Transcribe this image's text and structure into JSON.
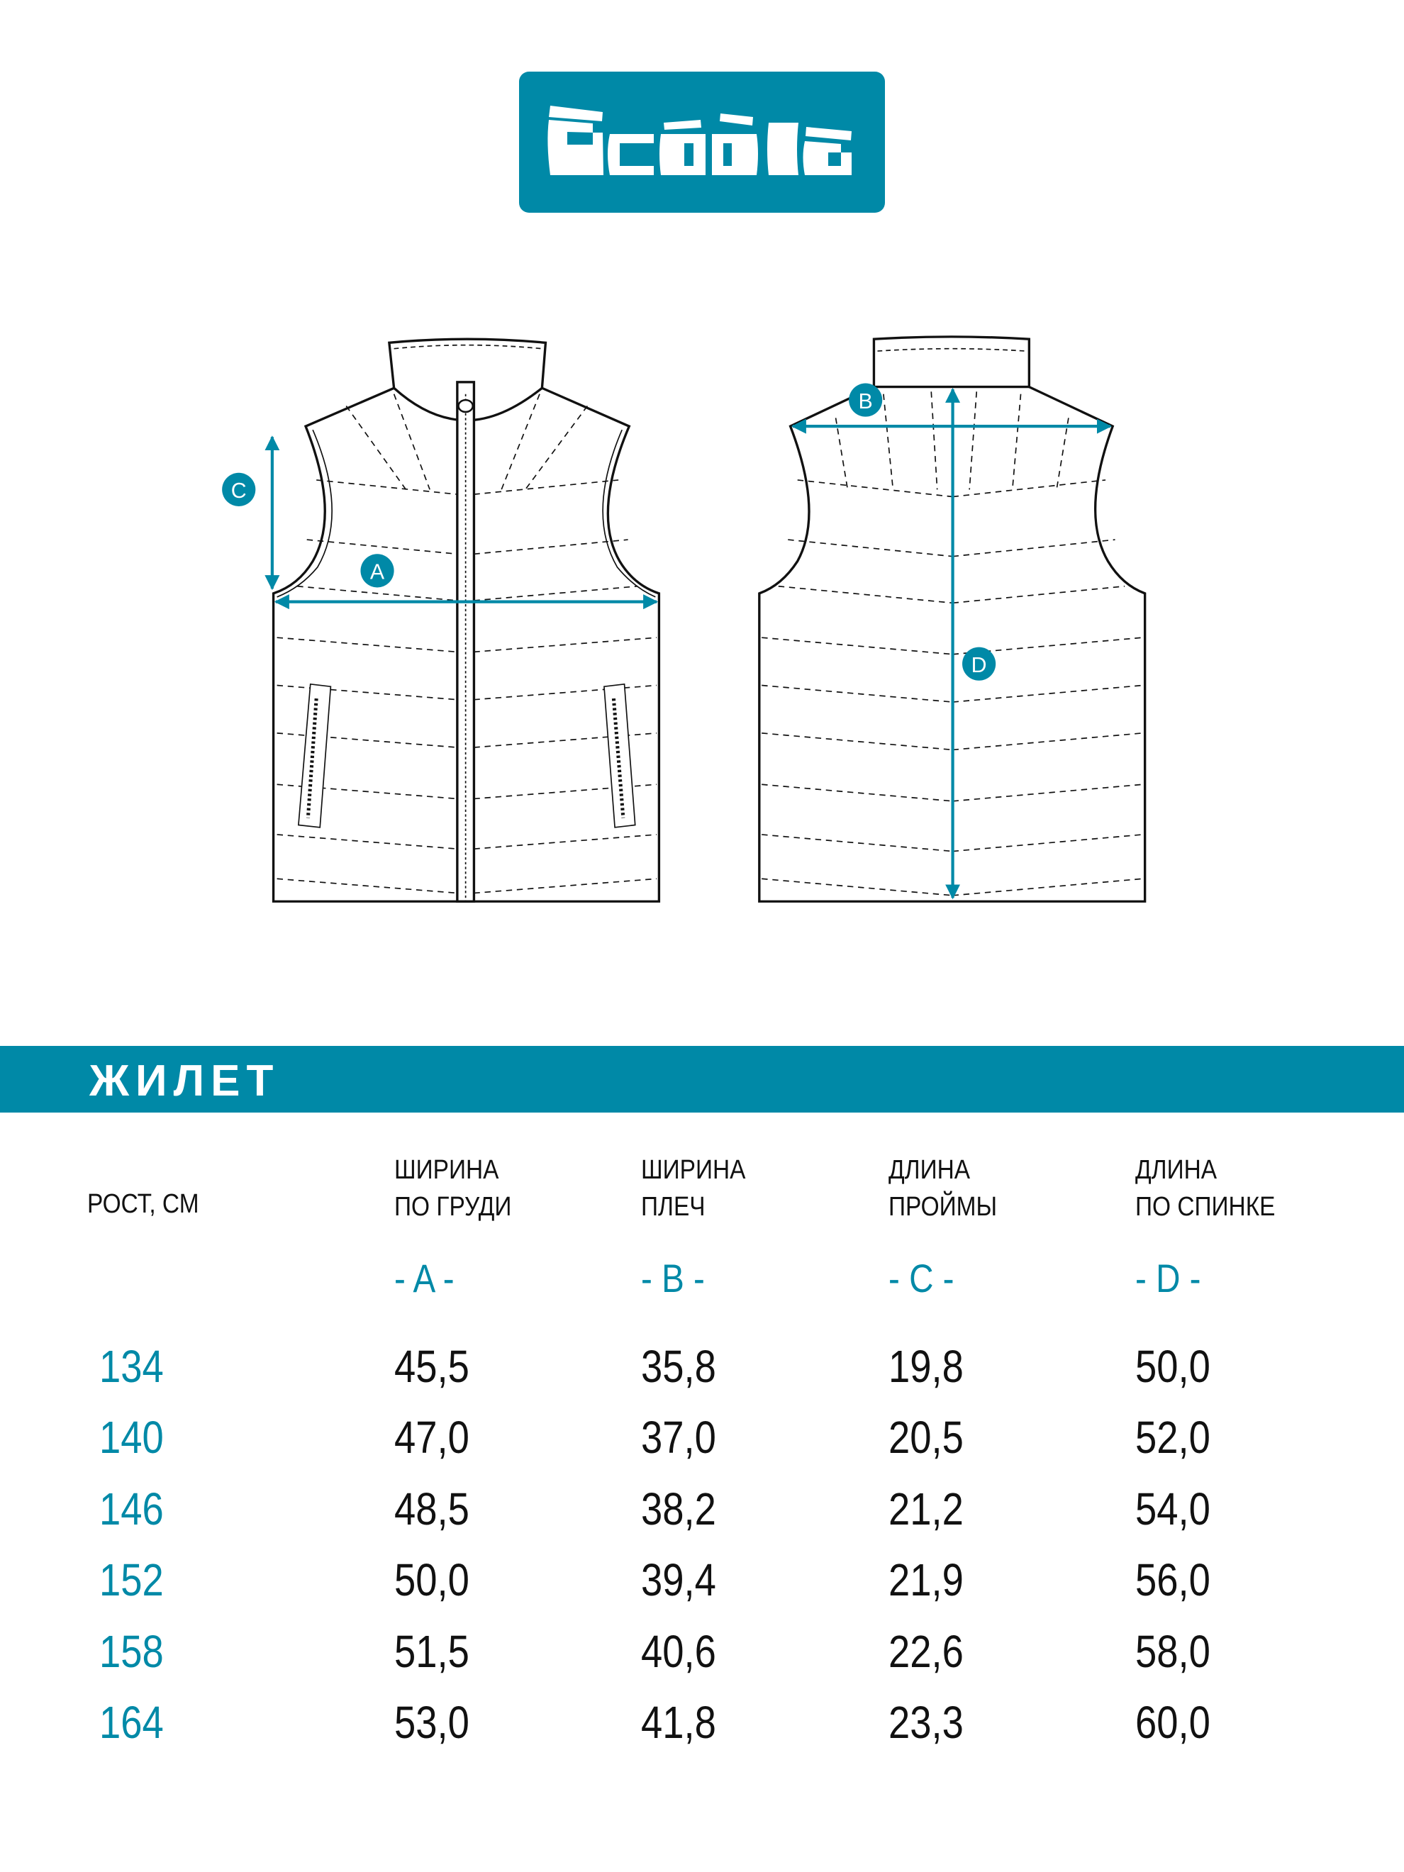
{
  "brand": {
    "name": "acoola",
    "color": "#0089a7"
  },
  "diagram": {
    "labels": {
      "a": "A",
      "b": "B",
      "c": "C",
      "d": "D"
    }
  },
  "section_title": "ЖИЛЕТ",
  "table": {
    "row_header": "РОСТ, СМ",
    "columns": [
      {
        "line1": "ШИРИНА",
        "line2": "ПО ГРУДИ",
        "letter": "- A -"
      },
      {
        "line1": "ШИРИНА",
        "line2": "ПЛЕЧ",
        "letter": "- B -"
      },
      {
        "line1": "ДЛИНА",
        "line2": "ПРОЙМЫ",
        "letter": "- C -"
      },
      {
        "line1": "ДЛИНА",
        "line2": "ПО СПИНКЕ",
        "letter": "- D -"
      }
    ],
    "rows": [
      {
        "size": "134",
        "values": [
          "45,5",
          "35,8",
          "19,8",
          "50,0"
        ]
      },
      {
        "size": "140",
        "values": [
          "47,0",
          "37,0",
          "20,5",
          "52,0"
        ]
      },
      {
        "size": "146",
        "values": [
          "48,5",
          "38,2",
          "21,2",
          "54,0"
        ]
      },
      {
        "size": "152",
        "values": [
          "50,0",
          "39,4",
          "21,9",
          "56,0"
        ]
      },
      {
        "size": "158",
        "values": [
          "51,5",
          "40,6",
          "22,6",
          "58,0"
        ]
      },
      {
        "size": "164",
        "values": [
          "53,0",
          "41,8",
          "23,3",
          "60,0"
        ]
      }
    ]
  }
}
